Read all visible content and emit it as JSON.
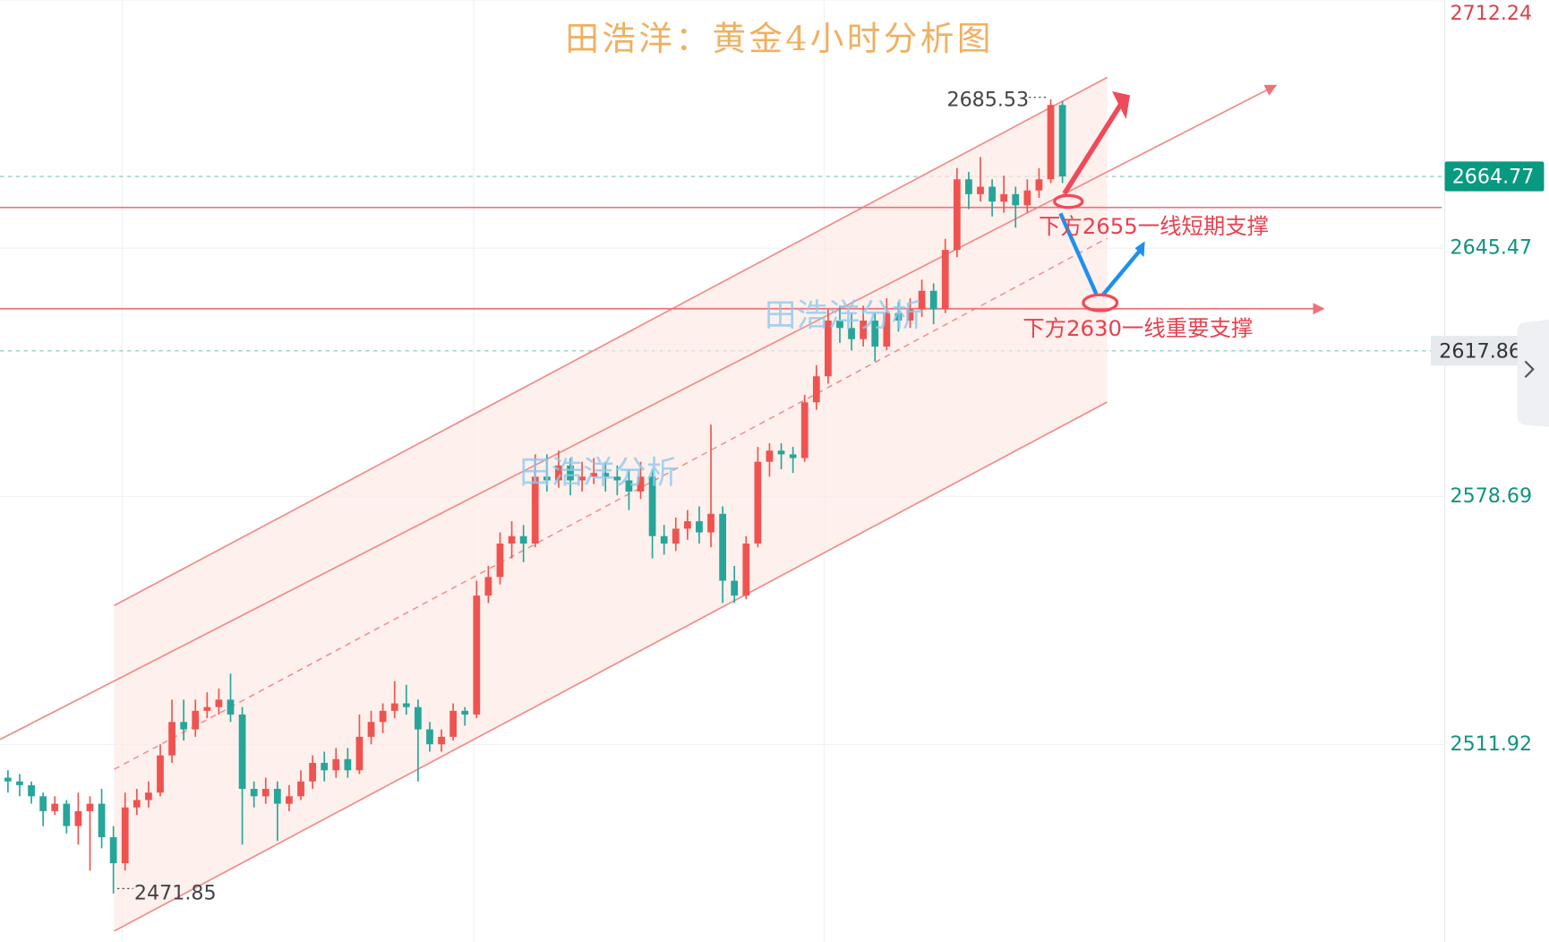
{
  "chart_data": {
    "type": "candlestick",
    "title": "田浩洋：黄金4小时分析图",
    "watermarks": [
      "田浩洋分析",
      "田浩洋分析"
    ],
    "annotations": [
      "下方2655一线短期支撑",
      "下方2630一线重要支撑"
    ],
    "high_label": {
      "value": 2685.53,
      "label": "2685.53"
    },
    "low_label": {
      "value": 2471.85,
      "label": "2471.85"
    },
    "price_lines": [
      {
        "value": 2664.77,
        "label": "2664.77",
        "color": "#089981"
      },
      {
        "value": 2617.86,
        "label": "2617.86",
        "color": "#e6e9ee"
      }
    ],
    "ylim": [
      2458.8,
      2712.24
    ],
    "yticks": [
      2511.92,
      2578.69,
      2645.47,
      2712.24
    ],
    "up_color": "#ef5350",
    "down_color": "#26a69a",
    "grid": true,
    "candles": [
      [
        2503,
        2505,
        2499,
        2502
      ],
      [
        2502,
        2504,
        2498,
        2501
      ],
      [
        2501,
        2502,
        2496,
        2498
      ],
      [
        2498,
        2499,
        2490,
        2494
      ],
      [
        2494,
        2498,
        2493,
        2496
      ],
      [
        2496,
        2497,
        2488,
        2490
      ],
      [
        2490,
        2499,
        2485,
        2494
      ],
      [
        2494,
        2498,
        2478,
        2496
      ],
      [
        2496,
        2500,
        2484,
        2487
      ],
      [
        2487,
        2490,
        2471.85,
        2480
      ],
      [
        2480,
        2499,
        2478,
        2495
      ],
      [
        2495,
        2500,
        2493,
        2497
      ],
      [
        2497,
        2502,
        2495,
        2499
      ],
      [
        2499,
        2512,
        2498,
        2509
      ],
      [
        2509,
        2524,
        2507,
        2518
      ],
      [
        2518,
        2524,
        2513,
        2516
      ],
      [
        2516,
        2524,
        2514,
        2521
      ],
      [
        2521,
        2526,
        2519,
        2522
      ],
      [
        2522,
        2527,
        2520,
        2524
      ],
      [
        2524,
        2531,
        2518,
        2520
      ],
      [
        2520,
        2522,
        2485,
        2500
      ],
      [
        2500,
        2502,
        2495,
        2498
      ],
      [
        2498,
        2503,
        2496,
        2500
      ],
      [
        2500,
        2502,
        2486,
        2496
      ],
      [
        2496,
        2501,
        2494,
        2498
      ],
      [
        2498,
        2505,
        2497,
        2502
      ],
      [
        2502,
        2509,
        2500,
        2507
      ],
      [
        2507,
        2510,
        2502,
        2505
      ],
      [
        2505,
        2511,
        2503,
        2508
      ],
      [
        2508,
        2511,
        2503,
        2505
      ],
      [
        2505,
        2520,
        2504,
        2514
      ],
      [
        2514,
        2521,
        2512,
        2518
      ],
      [
        2518,
        2523,
        2515,
        2521
      ],
      [
        2521,
        2529,
        2519,
        2523
      ],
      [
        2523,
        2528,
        2520,
        2522
      ],
      [
        2522,
        2524,
        2502,
        2516
      ],
      [
        2516,
        2518,
        2510,
        2512
      ],
      [
        2512,
        2516,
        2510,
        2514
      ],
      [
        2514,
        2523,
        2513,
        2521
      ],
      [
        2521,
        2522,
        2517,
        2520
      ],
      [
        2520,
        2556,
        2519,
        2552
      ],
      [
        2552,
        2560,
        2550,
        2557
      ],
      [
        2557,
        2569,
        2555,
        2566
      ],
      [
        2566,
        2572,
        2562,
        2568
      ],
      [
        2568,
        2571,
        2561,
        2566
      ],
      [
        2566,
        2590,
        2565,
        2584
      ],
      [
        2584,
        2590,
        2580,
        2583
      ],
      [
        2583,
        2591,
        2581,
        2587
      ],
      [
        2587,
        2589,
        2579,
        2583
      ],
      [
        2583,
        2588,
        2580,
        2584
      ],
      [
        2584,
        2589,
        2582,
        2585
      ],
      [
        2585,
        2588,
        2580,
        2584
      ],
      [
        2584,
        2587,
        2579,
        2583
      ],
      [
        2583,
        2586,
        2575,
        2580
      ],
      [
        2580,
        2588,
        2578,
        2584
      ],
      [
        2584,
        2586,
        2562,
        2568
      ],
      [
        2568,
        2571,
        2563,
        2566
      ],
      [
        2566,
        2573,
        2564,
        2570
      ],
      [
        2570,
        2575,
        2567,
        2572
      ],
      [
        2572,
        2576,
        2566,
        2569
      ],
      [
        2569,
        2598,
        2565,
        2574
      ],
      [
        2574,
        2576,
        2550,
        2556
      ],
      [
        2556,
        2560,
        2550,
        2552
      ],
      [
        2552,
        2568,
        2551,
        2566
      ],
      [
        2566,
        2592,
        2565,
        2588
      ],
      [
        2588,
        2593,
        2584,
        2591
      ],
      [
        2591,
        2593,
        2586,
        2590
      ],
      [
        2590,
        2592,
        2585,
        2589
      ],
      [
        2589,
        2606,
        2588,
        2604
      ],
      [
        2604,
        2614,
        2602,
        2611
      ],
      [
        2611,
        2629,
        2609,
        2626
      ],
      [
        2626,
        2630,
        2620,
        2624
      ],
      [
        2624,
        2628,
        2618,
        2621
      ],
      [
        2621,
        2630,
        2619,
        2626
      ],
      [
        2626,
        2628,
        2615,
        2619
      ],
      [
        2619,
        2632,
        2618,
        2628
      ],
      [
        2628,
        2631,
        2623,
        2626
      ],
      [
        2626,
        2632,
        2624,
        2629
      ],
      [
        2629,
        2637,
        2627,
        2634
      ],
      [
        2634,
        2636,
        2625,
        2629
      ],
      [
        2629,
        2648,
        2628,
        2645
      ],
      [
        2645,
        2667,
        2643,
        2664
      ],
      [
        2664,
        2666,
        2656,
        2660
      ],
      [
        2660,
        2670,
        2658,
        2662
      ],
      [
        2662,
        2664,
        2654,
        2658
      ],
      [
        2658,
        2665,
        2655,
        2660
      ],
      [
        2660,
        2662,
        2651,
        2657
      ],
      [
        2657,
        2664,
        2655,
        2661
      ],
      [
        2661,
        2667,
        2659,
        2664
      ],
      [
        2664,
        2685.53,
        2663,
        2684
      ],
      [
        2684,
        2685,
        2663,
        2664.77
      ]
    ]
  }
}
